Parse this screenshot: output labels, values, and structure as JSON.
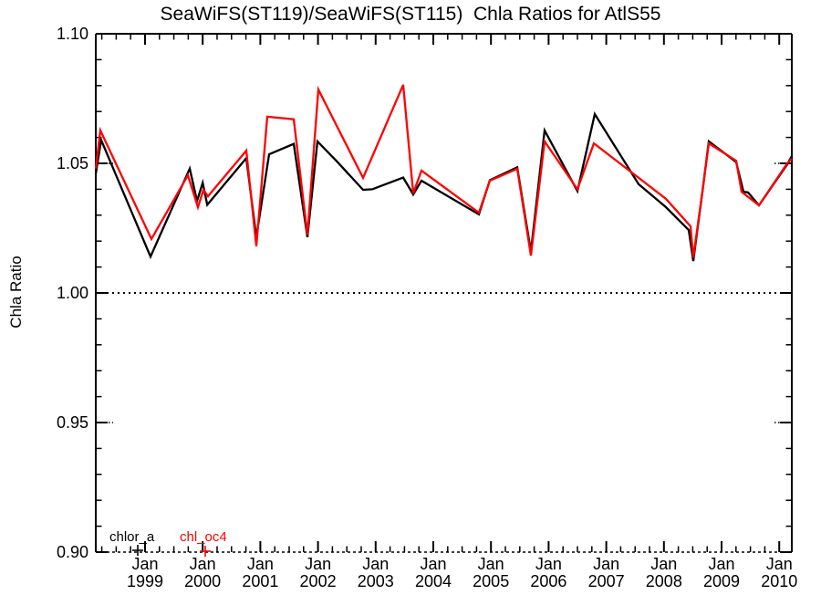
{
  "title": "SeaWiFS(ST119)/SeaWiFS(ST115)  Chla Ratios for AtlS55",
  "axes": {
    "y_label": "Chla Ratio",
    "y_tick_labels": [
      "1.10",
      "1.05",
      "1.00",
      "0.95",
      "0.90"
    ],
    "x_tick_line1": "Jan",
    "x_tick_years": [
      "1999",
      "2000",
      "2001",
      "2002",
      "2003",
      "2004",
      "2005",
      "2006",
      "2007",
      "2008",
      "2009",
      "2010"
    ]
  },
  "legend": [
    {
      "label": "chlor_a",
      "symbol": "+",
      "color": "#000000"
    },
    {
      "label": "chl_oc4",
      "symbol": "+",
      "color": "#ff0000"
    }
  ],
  "chart_data": {
    "type": "line",
    "title": "SeaWiFS(ST119)/SeaWiFS(ST115)  Chla Ratios for AtlS55",
    "xlabel": "",
    "ylabel": "Chla Ratio",
    "x_unit": "decimal_year",
    "xlim": [
      1998.146,
      2010.218
    ],
    "ylim": [
      0.9,
      1.1
    ],
    "y_major_ticks": [
      0.9,
      0.95,
      1.0,
      1.05,
      1.1
    ],
    "y_minor_tick_interval": 0.01,
    "x_major_ticks_years": [
      1999,
      2000,
      2001,
      2002,
      2003,
      2004,
      2005,
      2006,
      2007,
      2008,
      2009,
      2010
    ],
    "x_minor_tick_interval_years": 0.25,
    "reference_line": {
      "value": 1.0,
      "style": "dotted"
    },
    "grid_stub_values": [
      1.05,
      0.95
    ],
    "grid": false,
    "legend_position": "bottom-left-inside",
    "series": [
      {
        "name": "chlor_a",
        "color": "#000000",
        "points": [
          [
            1998.146,
            1.046
          ],
          [
            1998.24,
            1.059
          ],
          [
            1999.095,
            1.014
          ],
          [
            1999.775,
            1.048
          ],
          [
            1999.902,
            1.0355
          ],
          [
            2000.0,
            1.0425
          ],
          [
            2000.079,
            1.034
          ],
          [
            2000.756,
            1.052
          ],
          [
            2000.93,
            1.0215
          ],
          [
            2001.152,
            1.0535
          ],
          [
            2001.579,
            1.0575
          ],
          [
            2001.816,
            1.0215
          ],
          [
            2001.99,
            1.0585
          ],
          [
            2002.338,
            1.0505
          ],
          [
            2002.782,
            1.0398
          ],
          [
            2002.94,
            1.04
          ],
          [
            2003.478,
            1.0445
          ],
          [
            2003.652,
            1.038
          ],
          [
            2003.794,
            1.0433
          ],
          [
            2004.791,
            1.0303
          ],
          [
            2004.981,
            1.0435
          ],
          [
            2005.456,
            1.0485
          ],
          [
            2005.693,
            1.016
          ],
          [
            2005.93,
            1.0627
          ],
          [
            2006.5,
            1.0393
          ],
          [
            2006.801,
            1.069
          ],
          [
            2007.56,
            1.042
          ],
          [
            2008.035,
            1.0331
          ],
          [
            2008.43,
            1.0243
          ],
          [
            2008.509,
            1.0123
          ],
          [
            2008.668,
            1.039
          ],
          [
            2008.778,
            1.0585
          ],
          [
            2009.253,
            1.0505
          ],
          [
            2009.38,
            1.039
          ],
          [
            2009.459,
            1.0388
          ],
          [
            2009.649,
            1.0338
          ],
          [
            2010.139,
            1.0496
          ],
          [
            2010.218,
            1.0528
          ]
        ]
      },
      {
        "name": "chl_oc4",
        "color": "#ff0000",
        "points": [
          [
            1998.146,
            1.048
          ],
          [
            1998.225,
            1.0627
          ],
          [
            1999.111,
            1.0208
          ],
          [
            1999.744,
            1.0454
          ],
          [
            1999.918,
            1.0331
          ],
          [
            2000.013,
            1.0398
          ],
          [
            2000.092,
            1.0373
          ],
          [
            2000.756,
            1.0549
          ],
          [
            2000.93,
            1.018
          ],
          [
            2001.12,
            1.068
          ],
          [
            2001.579,
            1.067
          ],
          [
            2001.816,
            1.0225
          ],
          [
            2002.006,
            1.0785
          ],
          [
            2002.782,
            1.0444
          ],
          [
            2003.478,
            1.0803
          ],
          [
            2003.652,
            1.0384
          ],
          [
            2003.794,
            1.0472
          ],
          [
            2004.791,
            1.031
          ],
          [
            2004.981,
            1.0433
          ],
          [
            2005.456,
            1.0479
          ],
          [
            2005.693,
            1.0144
          ],
          [
            2005.93,
            1.0585
          ],
          [
            2006.5,
            1.04
          ],
          [
            2006.785,
            1.0577
          ],
          [
            2008.035,
            1.0363
          ],
          [
            2008.462,
            1.0257
          ],
          [
            2008.509,
            1.0137
          ],
          [
            2008.668,
            1.039
          ],
          [
            2008.778,
            1.0577
          ],
          [
            2009.253,
            1.051
          ],
          [
            2009.348,
            1.039
          ],
          [
            2009.649,
            1.0338
          ],
          [
            2010.139,
            1.05
          ],
          [
            2010.218,
            1.0518
          ]
        ]
      }
    ]
  }
}
